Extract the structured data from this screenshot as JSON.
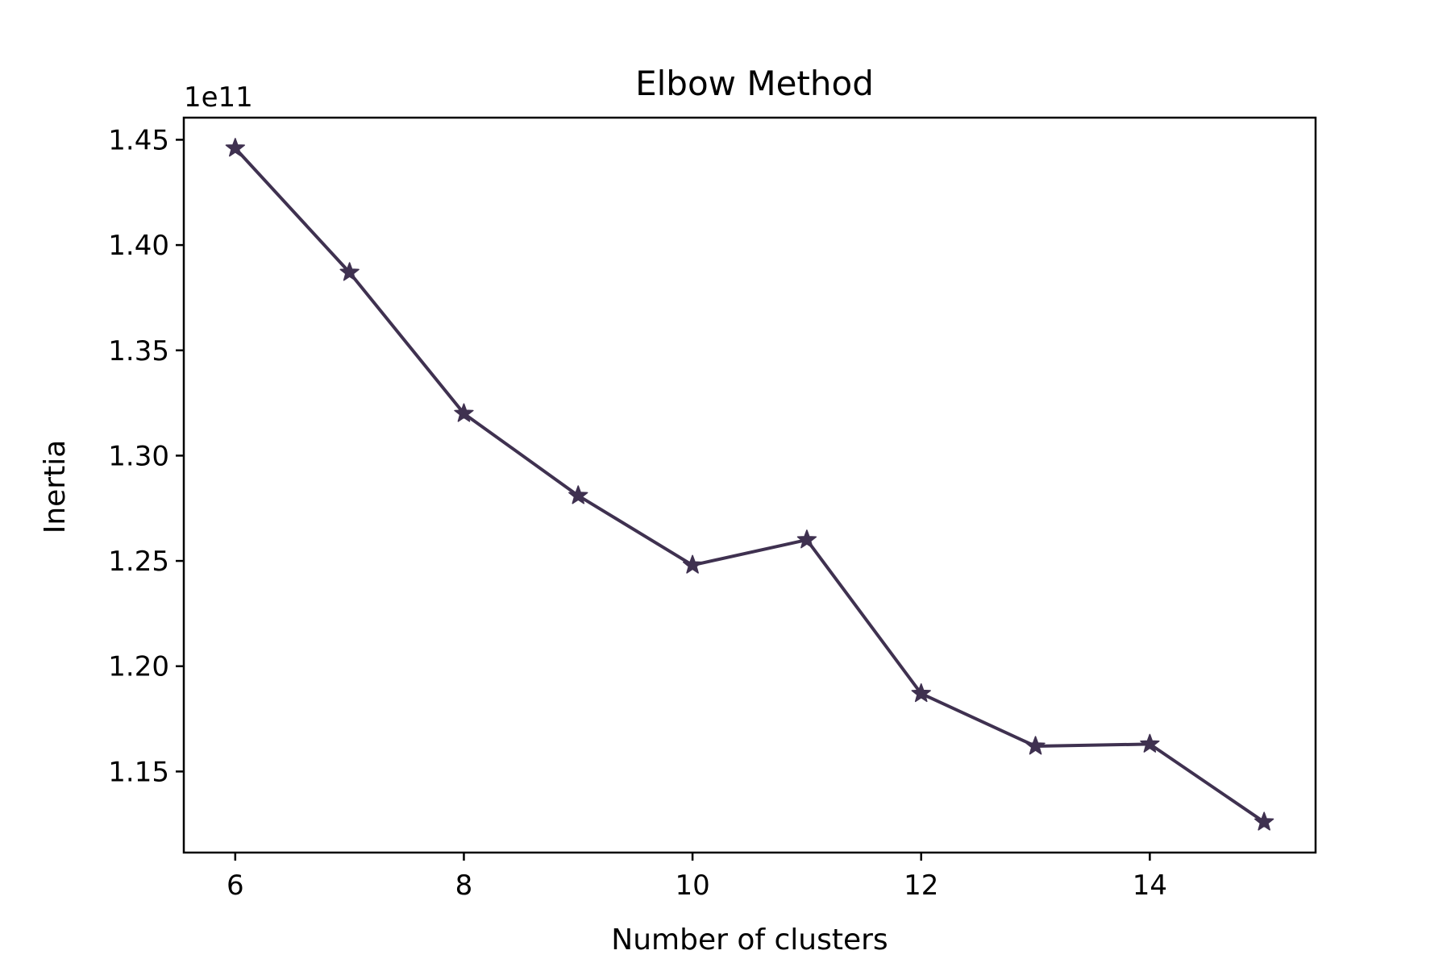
{
  "chart_data": {
    "type": "line",
    "title": "Elbow Method",
    "xlabel": "Number of clusters",
    "ylabel": "Inertia",
    "y_offset_label": "1e11",
    "x": [
      6,
      7,
      8,
      9,
      10,
      11,
      12,
      13,
      14,
      15
    ],
    "series": [
      {
        "values": [
          1.446,
          1.387,
          1.32,
          1.281,
          1.248,
          1.26,
          1.187,
          1.162,
          1.163,
          1.126
        ],
        "color": "#3f3150",
        "marker": "star"
      }
    ],
    "xticks": [
      6,
      8,
      10,
      12,
      14
    ],
    "xtick_labels": [
      "6",
      "8",
      "10",
      "12",
      "14"
    ],
    "yticks": [
      1.15,
      1.2,
      1.25,
      1.3,
      1.35,
      1.4,
      1.45
    ],
    "ytick_labels": [
      "1.15",
      "1.20",
      "1.25",
      "1.30",
      "1.35",
      "1.40",
      "1.45"
    ],
    "xlim": [
      5.55,
      15.45
    ],
    "ylim": [
      1.1115,
      1.4605
    ],
    "grid": false,
    "legend": false
  }
}
